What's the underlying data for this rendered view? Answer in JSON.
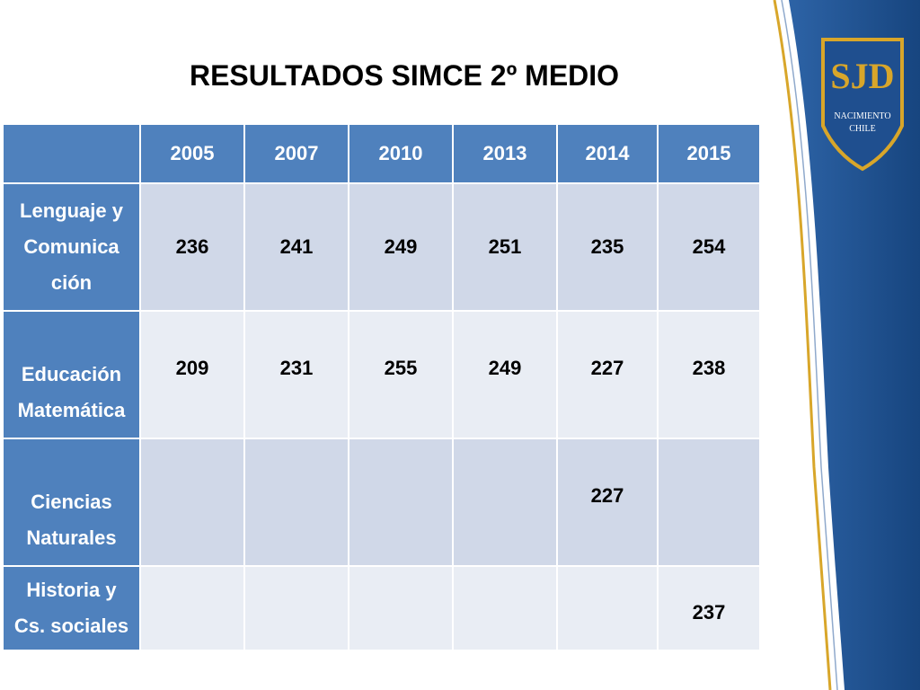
{
  "slide": {
    "title": "RESULTADOS SIMCE  2º MEDIO"
  },
  "logo": {
    "initials": "SJD",
    "line1": "NACIMIENTO",
    "line2": "CHILE"
  },
  "table": {
    "years": [
      "2005",
      "2007",
      "2010",
      "2013",
      "2014",
      "2015"
    ],
    "rows": [
      {
        "subject_lines": [
          "Lenguaje y",
          "Comunica",
          "ción"
        ],
        "values": [
          "236",
          "241",
          "249",
          "251",
          "235",
          "254"
        ]
      },
      {
        "subject_lines": [
          "Educación",
          "Matemática"
        ],
        "values": [
          "209",
          "231",
          "255",
          "249",
          "227",
          "238"
        ]
      },
      {
        "subject_lines": [
          "Ciencias",
          "Naturales"
        ],
        "values": [
          "",
          "",
          "",
          "",
          "227",
          ""
        ]
      },
      {
        "subject_lines": [
          "Historia y",
          "Cs. sociales"
        ],
        "values": [
          "",
          "",
          "",
          "",
          "",
          "237"
        ]
      }
    ]
  },
  "colors": {
    "header_blue": "#4f81bd",
    "band_dark": "#d0d8e8",
    "band_light": "#e9edf4",
    "side_blue": "#1f4f8f",
    "logo_gold": "#d8a62a"
  }
}
